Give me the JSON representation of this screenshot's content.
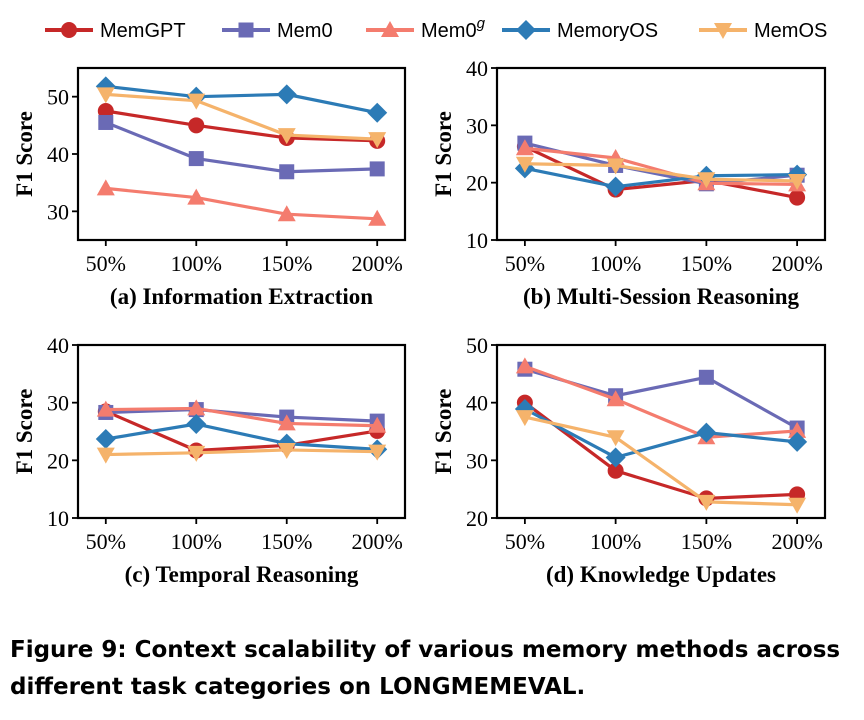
{
  "caption": "Figure 9: Context scalability of various memory methods across different task categories on LONGMEMEVAL.",
  "legend": [
    {
      "label": "MemGPT",
      "sup": ""
    },
    {
      "label": "Mem0",
      "sup": ""
    },
    {
      "label": "Mem0",
      "sup": "g"
    },
    {
      "label": "MemoryOS",
      "sup": ""
    },
    {
      "label": "MemOS",
      "sup": ""
    }
  ],
  "colors": {
    "MemGPT": "#c62828",
    "Mem0": "#6a6ab5",
    "Mem0g": "#f47c6e",
    "MemoryOS": "#2c7bb6",
    "MemOS": "#f5b36b"
  },
  "markers": {
    "MemGPT": "circle",
    "Mem0": "square",
    "Mem0g": "triangle-up",
    "MemoryOS": "diamond",
    "MemOS": "triangle-down"
  },
  "chart_data": [
    {
      "type": "line",
      "title": "(a) Information Extraction",
      "ylabel": "F1 Score",
      "categories": [
        "50%",
        "100%",
        "150%",
        "200%"
      ],
      "ylim": [
        25,
        55
      ],
      "yticks": [
        30,
        40,
        50
      ],
      "series": [
        {
          "name": "MemGPT",
          "values": [
            47.5,
            45.0,
            42.8,
            42.3
          ]
        },
        {
          "name": "Mem0",
          "values": [
            45.5,
            39.2,
            36.9,
            37.4
          ]
        },
        {
          "name": "Mem0g",
          "values": [
            34.0,
            32.4,
            29.5,
            28.7
          ]
        },
        {
          "name": "MemoryOS",
          "values": [
            51.8,
            50.0,
            50.4,
            47.2
          ]
        },
        {
          "name": "MemOS",
          "values": [
            50.4,
            49.3,
            43.3,
            42.6
          ]
        }
      ]
    },
    {
      "type": "line",
      "title": "(b) Multi-Session Reasoning",
      "ylabel": "F1 Score",
      "categories": [
        "50%",
        "100%",
        "150%",
        "200%"
      ],
      "ylim": [
        10,
        40
      ],
      "yticks": [
        10,
        20,
        30,
        40
      ],
      "series": [
        {
          "name": "MemGPT",
          "values": [
            26.3,
            18.8,
            20.4,
            17.4
          ]
        },
        {
          "name": "Mem0",
          "values": [
            26.9,
            23.0,
            19.8,
            21.3
          ]
        },
        {
          "name": "Mem0g",
          "values": [
            26.0,
            24.3,
            19.9,
            19.7
          ]
        },
        {
          "name": "MemoryOS",
          "values": [
            22.5,
            19.3,
            21.2,
            21.4
          ]
        },
        {
          "name": "MemOS",
          "values": [
            23.3,
            23.0,
            20.6,
            20.3
          ]
        }
      ]
    },
    {
      "type": "line",
      "title": "(c) Temporal Reasoning",
      "ylabel": "F1 Score",
      "categories": [
        "50%",
        "100%",
        "150%",
        "200%"
      ],
      "ylim": [
        10,
        40
      ],
      "yticks": [
        10,
        20,
        30,
        40
      ],
      "series": [
        {
          "name": "MemGPT",
          "values": [
            28.5,
            21.7,
            22.6,
            25.1
          ]
        },
        {
          "name": "Mem0",
          "values": [
            28.3,
            28.8,
            27.5,
            26.8
          ]
        },
        {
          "name": "Mem0g",
          "values": [
            28.8,
            29.0,
            26.4,
            26.0
          ]
        },
        {
          "name": "MemoryOS",
          "values": [
            23.7,
            26.3,
            22.9,
            21.9
          ]
        },
        {
          "name": "MemOS",
          "values": [
            21.0,
            21.3,
            21.8,
            21.5
          ]
        }
      ]
    },
    {
      "type": "line",
      "title": "(d) Knowledge Updates",
      "ylabel": "F1 Score",
      "categories": [
        "50%",
        "100%",
        "150%",
        "200%"
      ],
      "ylim": [
        20,
        50
      ],
      "yticks": [
        20,
        30,
        40,
        50
      ],
      "series": [
        {
          "name": "MemGPT",
          "values": [
            40.0,
            28.2,
            23.4,
            24.1
          ]
        },
        {
          "name": "Mem0",
          "values": [
            45.8,
            41.2,
            44.4,
            35.6
          ]
        },
        {
          "name": "Mem0g",
          "values": [
            46.3,
            40.6,
            34.0,
            35.1
          ]
        },
        {
          "name": "MemoryOS",
          "values": [
            38.9,
            30.5,
            34.8,
            33.2
          ]
        },
        {
          "name": "MemOS",
          "values": [
            37.5,
            34.0,
            22.8,
            22.3
          ]
        }
      ]
    }
  ]
}
